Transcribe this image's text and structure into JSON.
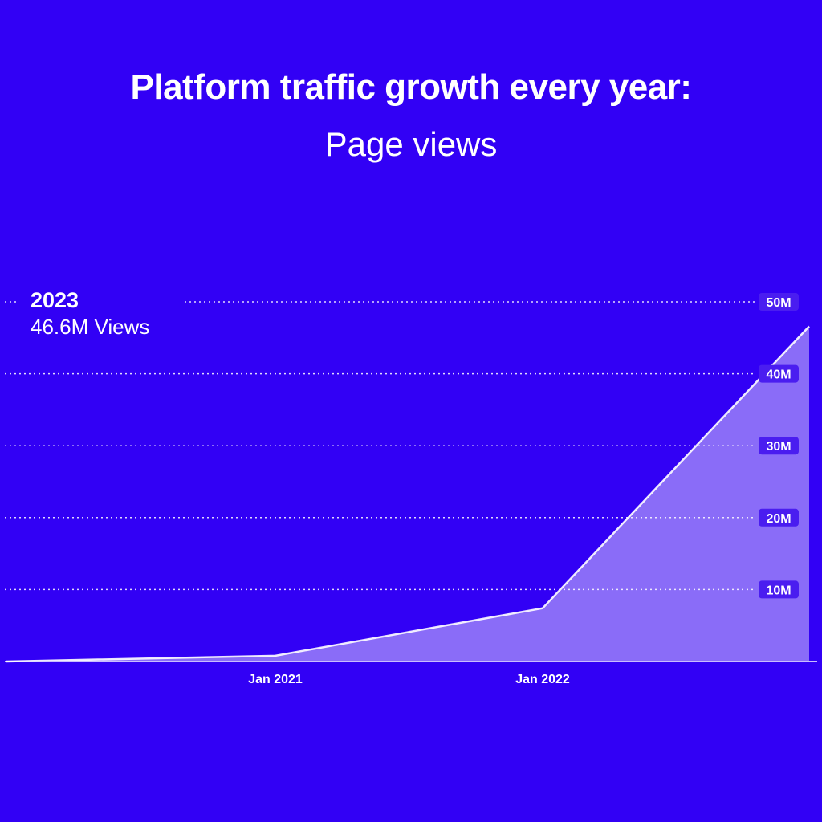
{
  "title": "Platform traffic growth every year:",
  "subtitle": "Page views",
  "callout": {
    "year": "2023",
    "value_text": "46.6M Views"
  },
  "colors": {
    "background": "#3200f5",
    "area_fill": "#8a6cf8",
    "line": "#ffffff",
    "label_badge": "#4a1df0"
  },
  "chart_data": {
    "type": "area",
    "title": "Platform traffic growth every year:",
    "subtitle": "Page views",
    "x": [
      "2020",
      "2021",
      "2022",
      "2023"
    ],
    "values": [
      0,
      0.8,
      7.4,
      46.6
    ],
    "x_ticks": [
      {
        "x": "2021",
        "label": "Jan 2021"
      },
      {
        "x": "2022",
        "label": "Jan 2022"
      }
    ],
    "y_ticks": [
      {
        "value": 10,
        "label": "10M"
      },
      {
        "value": 20,
        "label": "20M"
      },
      {
        "value": 30,
        "label": "30M"
      },
      {
        "value": 40,
        "label": "40M"
      },
      {
        "value": 50,
        "label": "50M"
      }
    ],
    "ylim": [
      0,
      50
    ],
    "unit": "M",
    "grid": true,
    "grid_style": "dotted",
    "y_axis_position": "right",
    "xlabel": "",
    "ylabel": ""
  }
}
